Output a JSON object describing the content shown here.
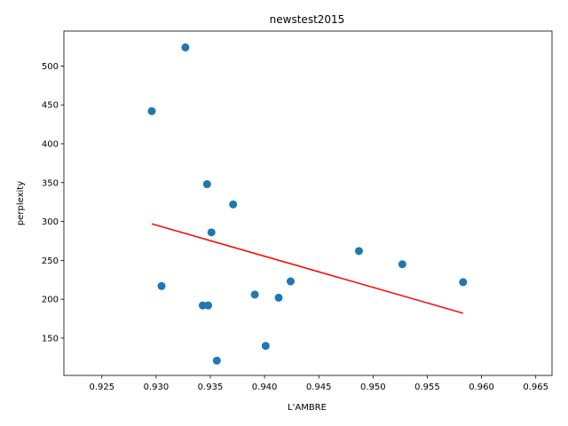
{
  "chart_data": {
    "type": "scatter",
    "title": "newstest2015",
    "xlabel": "L'AMBRE",
    "ylabel": "perplexity",
    "xlim": [
      0.9215,
      0.9665
    ],
    "ylim": [
      102,
      545
    ],
    "xticks": [
      0.925,
      0.93,
      0.935,
      0.94,
      0.945,
      0.95,
      0.955,
      0.96,
      0.965
    ],
    "xtick_labels": [
      "0.925",
      "0.930",
      "0.935",
      "0.940",
      "0.945",
      "0.950",
      "0.955",
      "0.960",
      "0.965"
    ],
    "yticks": [
      150,
      200,
      250,
      300,
      350,
      400,
      450,
      500
    ],
    "ytick_labels": [
      "150",
      "200",
      "250",
      "300",
      "350",
      "400",
      "450",
      "500"
    ],
    "grid": false,
    "colors": {
      "points": "#1f77b4",
      "trend": "#ff0000"
    },
    "points": [
      {
        "x": 0.9327,
        "y": 524
      },
      {
        "x": 0.9296,
        "y": 442
      },
      {
        "x": 0.9347,
        "y": 348
      },
      {
        "x": 0.9371,
        "y": 322
      },
      {
        "x": 0.9351,
        "y": 286
      },
      {
        "x": 0.9487,
        "y": 262
      },
      {
        "x": 0.9527,
        "y": 245
      },
      {
        "x": 0.9583,
        "y": 222
      },
      {
        "x": 0.9424,
        "y": 223
      },
      {
        "x": 0.9305,
        "y": 217
      },
      {
        "x": 0.9391,
        "y": 206
      },
      {
        "x": 0.9413,
        "y": 202
      },
      {
        "x": 0.9343,
        "y": 192
      },
      {
        "x": 0.9348,
        "y": 192
      },
      {
        "x": 0.9401,
        "y": 140
      },
      {
        "x": 0.9356,
        "y": 121
      }
    ],
    "trend_line": {
      "x": [
        0.9296,
        0.9583
      ],
      "y": [
        297,
        182
      ]
    }
  }
}
